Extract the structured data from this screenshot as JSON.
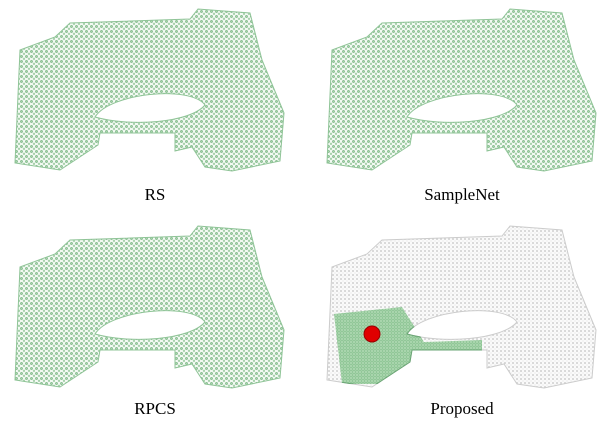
{
  "figure": {
    "captions": [
      "RS",
      "SampleNet",
      "RPCS",
      "Proposed"
    ]
  }
}
